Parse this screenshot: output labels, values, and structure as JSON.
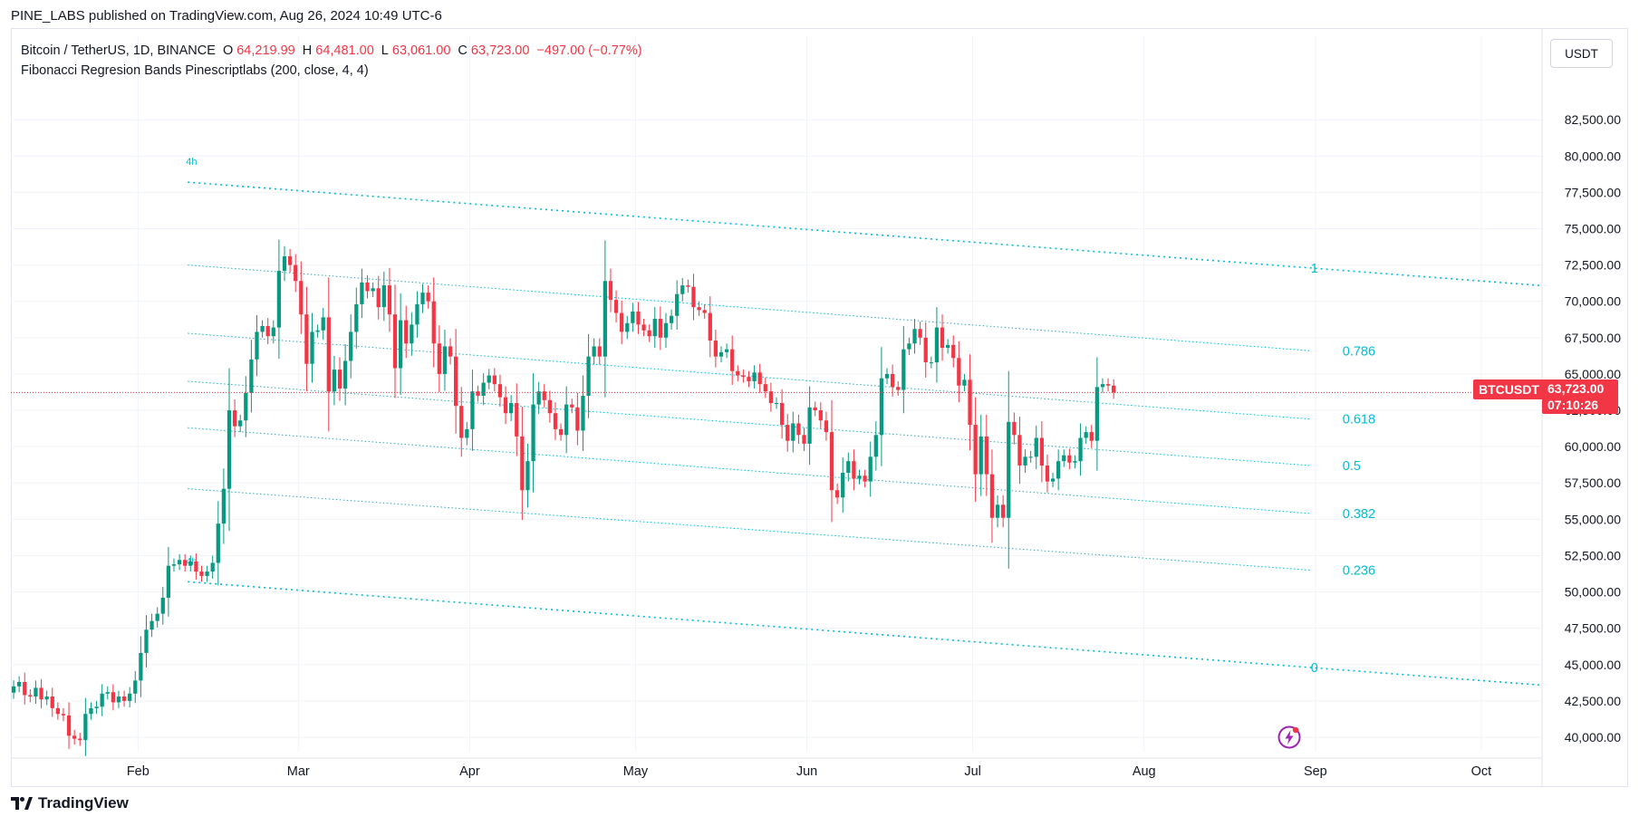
{
  "publisher": {
    "text": "PINE_LABS published on TradingView.com, Aug 26, 2024 10:49 UTC-6"
  },
  "legend": {
    "symbol": "Bitcoin / TetherUS, 1D, BINANCE",
    "open_label": "O",
    "open": "64,219.99",
    "high_label": "H",
    "high": "64,481.00",
    "low_label": "L",
    "low": "63,061.00",
    "close_label": "C",
    "close": "63,723.00",
    "change": "−497.00 (−0.77%)",
    "indicator": "Fibonacci Regresion Bands Pinescriptlabs (200, close, 4, 4)"
  },
  "currency_button": {
    "label": "USDT"
  },
  "price_tag": {
    "symbol": "BTCUSDT",
    "price": "63,723.00",
    "countdown": "07:10:26"
  },
  "footer": {
    "logo_text": "TradingView"
  },
  "colors": {
    "up": "#089981",
    "down": "#f23645",
    "fib": "#00bcd4",
    "grid": "#f0f3fa",
    "last_price_line": "#f23645"
  },
  "icons": {
    "flash": "flash-circle-icon",
    "logo": "tradingview-logo-icon"
  },
  "chart_data": {
    "type": "candlestick",
    "title": "Bitcoin / TetherUS, 1D, BINANCE",
    "ylim": [
      39000,
      87000
    ],
    "y_ticks": [
      40000,
      42500,
      45000,
      47500,
      50000,
      52500,
      55000,
      57500,
      60000,
      62500,
      65000,
      67500,
      70000,
      72500,
      75000,
      77500,
      80000,
      82500
    ],
    "y_tick_labels": [
      "40,000.00",
      "42,500.00",
      "45,000.00",
      "47,500.00",
      "50,000.00",
      "52,500.00",
      "55,000.00",
      "57,500.00",
      "60,000.00",
      "62,500.00",
      "65,000.00",
      "67,500.00",
      "70,000.00",
      "72,500.00",
      "75,000.00",
      "77,500.00",
      "80,000.00",
      "82,500.00"
    ],
    "x_start": "2024-01-09",
    "x_end": "2024-10-12",
    "x_ticks": [
      {
        "label": "Feb",
        "day": 23
      },
      {
        "label": "Mar",
        "day": 52
      },
      {
        "label": "Apr",
        "day": 83
      },
      {
        "label": "May",
        "day": 113
      },
      {
        "label": "Jun",
        "day": 144
      },
      {
        "label": "Jul",
        "day": 174
      },
      {
        "label": "Aug",
        "day": 205
      },
      {
        "label": "Sep",
        "day": 236
      },
      {
        "label": "Oct",
        "day": 266
      }
    ],
    "last_price": 63723,
    "close_series_day_start": 0,
    "closes": [
      43500,
      43800,
      42900,
      42800,
      43400,
      42600,
      42800,
      42000,
      41600,
      41500,
      40100,
      39900,
      39800,
      41600,
      42000,
      42100,
      43000,
      43100,
      42400,
      42800,
      42500,
      43000,
      43900,
      45800,
      47400,
      48000,
      48500,
      49600,
      51800,
      51900,
      52200,
      51800,
      52100,
      51400,
      51100,
      51400,
      52000,
      54700,
      57100,
      62500,
      61400,
      61800,
      63700,
      66000,
      67900,
      68300,
      67600,
      68200,
      72100,
      73100,
      72500,
      71400,
      69100,
      65700,
      67900,
      68000,
      68900,
      63800,
      65300,
      64000,
      65900,
      67900,
      69800,
      71300,
      70700,
      70900,
      69600,
      71100,
      69100,
      65400,
      68700,
      67100,
      68400,
      69800,
      70600,
      70000,
      67100,
      65000,
      66900,
      66200,
      62800,
      60600,
      61200,
      63800,
      63500,
      64400,
      64900,
      64300,
      63400,
      62300,
      63000,
      60700,
      57000,
      59000,
      62900,
      63800,
      63200,
      62300,
      61200,
      60800,
      62900,
      62700,
      61100,
      63500,
      66200,
      66900,
      66200,
      71400,
      70100,
      69200,
      67900,
      68500,
      69300,
      68400,
      68000,
      67600,
      68800,
      67500,
      68500,
      69000,
      70500,
      71100,
      71000,
      69600,
      69400,
      69200,
      67300,
      66200,
      66500,
      66700,
      65200,
      64900,
      64800,
      64500,
      65100,
      64300,
      63800,
      63000,
      63000,
      61500,
      60400,
      61600,
      60800,
      60200,
      62700,
      62500,
      61800,
      61000,
      57000,
      56500,
      58200,
      59000,
      57800,
      58000,
      57600,
      59300,
      60800,
      64700,
      65000,
      64100,
      63900,
      66700,
      67100,
      68100,
      67500,
      65800,
      65800,
      68200,
      66800,
      67000,
      66100,
      64200,
      64600,
      61500,
      58100,
      60700,
      58100,
      55100,
      56000,
      55100,
      61700,
      60800,
      58700,
      59300,
      59300,
      60600,
      58700,
      57600,
      57800,
      59000,
      59400,
      58900,
      59000,
      60600,
      61000,
      60400,
      64100,
      64300,
      64200,
      63723
    ],
    "fib_bands": {
      "x_start_day": 32,
      "x_end_day": 235,
      "levels": [
        {
          "label": "1",
          "start": 78200,
          "end": 72300
        },
        {
          "label": "0.786",
          "start": 72500,
          "end": 66600
        },
        {
          "label": "0.618",
          "start": 67800,
          "end": 61900
        },
        {
          "label": "0.5",
          "start": 64500,
          "end": 58700
        },
        {
          "label": "0.382",
          "start": 61300,
          "end": 55400
        },
        {
          "label": "0.236",
          "start": 57100,
          "end": 51500
        },
        {
          "label": "0",
          "start": 50700,
          "end": 44800
        }
      ],
      "timeframe_label": "4h"
    }
  }
}
